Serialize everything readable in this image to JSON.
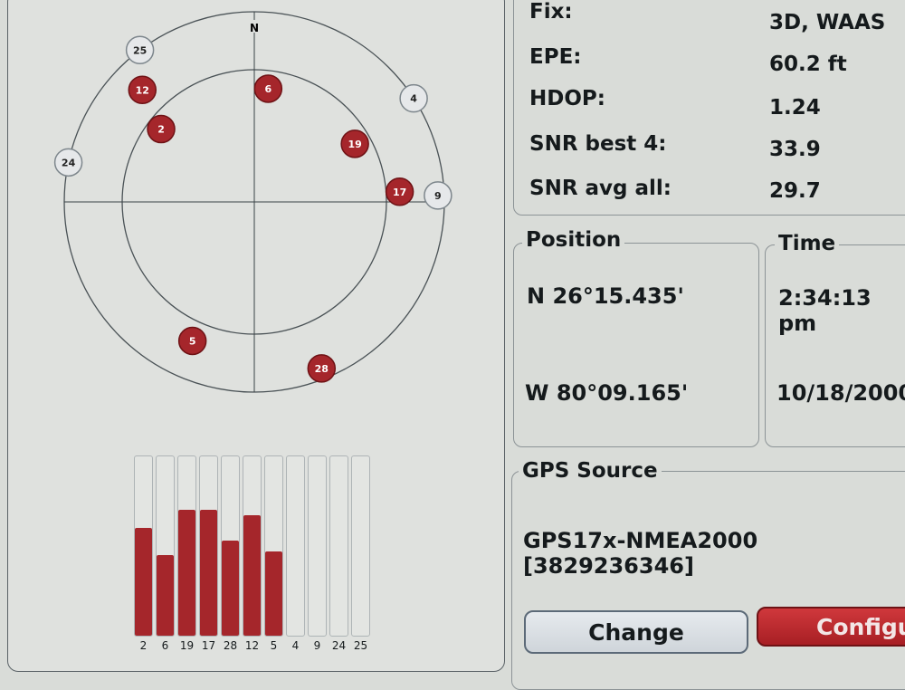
{
  "skyplot": {
    "north_label": "N",
    "colors": {
      "active": "#a5262b",
      "inactive": "#e6e8ea"
    },
    "satellites": [
      {
        "prn": "25",
        "azimuth": 323,
        "elevation": 0,
        "active": false
      },
      {
        "prn": "12",
        "azimuth": 315,
        "elevation": 15,
        "active": true
      },
      {
        "prn": "6",
        "azimuth": 7,
        "elevation": 36,
        "active": true
      },
      {
        "prn": "4",
        "azimuth": 57,
        "elevation": 0,
        "active": false
      },
      {
        "prn": "2",
        "azimuth": 308,
        "elevation": 34,
        "active": true
      },
      {
        "prn": "19",
        "azimuth": 60,
        "elevation": 35,
        "active": true
      },
      {
        "prn": "17",
        "azimuth": 86,
        "elevation": 21,
        "active": true
      },
      {
        "prn": "9",
        "azimuth": 88,
        "elevation": 3,
        "active": false
      },
      {
        "prn": "24",
        "azimuth": 282,
        "elevation": 0,
        "active": false
      },
      {
        "prn": "5",
        "azimuth": 204,
        "elevation": 18,
        "active": true
      },
      {
        "prn": "28",
        "azimuth": 158,
        "elevation": 5,
        "active": true
      }
    ]
  },
  "signal_bars": [
    {
      "prn": "2",
      "level": 0.6
    },
    {
      "prn": "6",
      "level": 0.45
    },
    {
      "prn": "19",
      "level": 0.7
    },
    {
      "prn": "17",
      "level": 0.7
    },
    {
      "prn": "28",
      "level": 0.53
    },
    {
      "prn": "12",
      "level": 0.67
    },
    {
      "prn": "5",
      "level": 0.47
    },
    {
      "prn": "4",
      "level": 0
    },
    {
      "prn": "9",
      "level": 0
    },
    {
      "prn": "24",
      "level": 0
    },
    {
      "prn": "25",
      "level": 0
    }
  ],
  "status": {
    "fix_label": "Fix:",
    "fix": "3D, WAAS",
    "epe_label": "EPE:",
    "epe": "60.2 ft",
    "hdop_label": "HDOP:",
    "hdop": "1.24",
    "snr_best_label": "SNR best 4:",
    "snr_best": "33.9",
    "snr_avg_label": "SNR avg all:",
    "snr_avg": "29.7"
  },
  "position": {
    "title": "Position",
    "lat": "N  26°15.435'",
    "lon": "W  80°09.165'"
  },
  "time": {
    "title": "Time",
    "time": "2:34:13 pm",
    "date": "10/18/2000"
  },
  "gps_source": {
    "title": "GPS Source",
    "value": "GPS17x-NMEA2000 [3829236346]"
  },
  "buttons": {
    "change": "Change",
    "configure": "Configure"
  }
}
